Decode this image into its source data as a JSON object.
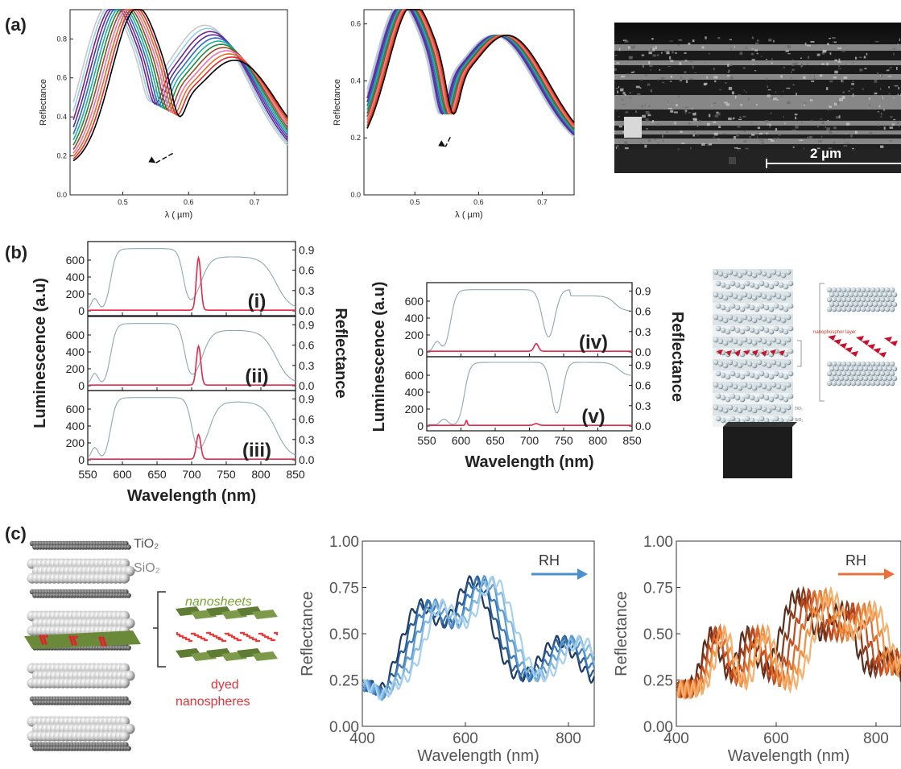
{
  "panel_labels": {
    "a": "(a)",
    "b": "(b)",
    "c": "(c)"
  },
  "panel_a": {
    "sem_scale_label": "2 µm",
    "colors": [
      "#000000",
      "#e8282a",
      "#e07020",
      "#f070b0",
      "#9a4b2a",
      "#1e8a3c",
      "#20b0a0",
      "#2f68c8",
      "#5530a0",
      "#7a1f8a",
      "#8fd0e8",
      "#c8c8c8"
    ],
    "chart_left": {
      "ylabel": "Reflectance",
      "xlabel": "λ ( µm)",
      "x_ticks": [
        "0.5",
        "0.6",
        "0.7"
      ],
      "y_ticks": [
        "0.0",
        "0.2",
        "0.4",
        "0.6",
        "0.8"
      ]
    },
    "chart_right": {
      "ylabel": "Reflectance",
      "xlabel": "λ ( µm)",
      "x_ticks": [
        "0.5",
        "0.6",
        "0.7"
      ],
      "y_ticks": [
        "0.0",
        "0.2",
        "0.4",
        "0.6"
      ]
    }
  },
  "panel_b": {
    "ylabel_left": "Luminescence (a.u)",
    "ylabel_right": "Reflectance",
    "xlabel": "Wavelength (nm)",
    "lum_ticks": [
      "0",
      "200",
      "400",
      "600"
    ],
    "refl_ticks": [
      "0.0",
      "0.3",
      "0.6",
      "0.9"
    ],
    "x_ticks": [
      "550",
      "600",
      "650",
      "700",
      "750",
      "800",
      "850"
    ],
    "subpanels": [
      {
        "label": "(i)",
        "peak": 620
      },
      {
        "label": "(ii)",
        "peak": 460
      },
      {
        "label": "(iii)",
        "peak": 290
      },
      {
        "label": "(iv)",
        "peak": 90
      },
      {
        "label": "(v)",
        "peak": 20
      }
    ],
    "schematic_labels": {
      "nanophosphor": "nanophosphor layer",
      "tio2": "TiO₂",
      "sio2": "SiO₂"
    }
  },
  "panel_c": {
    "schematic": {
      "tio2": "TiO₂",
      "sio2": "SiO₂",
      "nanosheets": "nanosheets",
      "dyed1": "dyed",
      "dyed2": "nanospheres"
    },
    "chart_blue": {
      "xlabel": "Wavelength (nm)",
      "ylabel": "Reflectance",
      "arrow_label": "RH",
      "x_ticks": [
        "400",
        "600",
        "800"
      ],
      "y_ticks": [
        "0.00",
        "0.25",
        "0.50",
        "0.75",
        "1.00"
      ],
      "colors": [
        "#1a3a66",
        "#2a5a90",
        "#3a78b8",
        "#5a9ad0",
        "#80b8e0",
        "#a8d0ee"
      ]
    },
    "chart_orange": {
      "xlabel": "Wavelength (nm)",
      "ylabel": "Reflectance",
      "arrow_label": "RH",
      "x_ticks": [
        "400",
        "600",
        "800"
      ],
      "y_ticks": [
        "0.00",
        "0.25",
        "0.50",
        "0.75",
        "1.00"
      ],
      "colors": [
        "#5a2a1a",
        "#8a3a1a",
        "#c04a20",
        "#e06a2a",
        "#f09040",
        "#f4b070"
      ]
    }
  },
  "chart_data": [
    {
      "type": "line",
      "xlabel": "λ ( µm)",
      "ylabel": "Reflectance",
      "xlim": [
        0.42,
        0.75
      ],
      "ylim": [
        0,
        0.95
      ],
      "series_count": 12,
      "dip_wavelength_range": [
        0.535,
        0.585
      ],
      "peak1": 0.9,
      "peak2_range": [
        0.7,
        0.88
      ]
    },
    {
      "type": "line",
      "xlabel": "λ ( µm)",
      "ylabel": "Reflectance",
      "xlim": [
        0.42,
        0.75
      ],
      "ylim": [
        0,
        0.65
      ],
      "series_count": 12,
      "dip_wavelength_range": [
        0.535,
        0.56
      ],
      "peak1": 0.59,
      "peak2": 0.55
    },
    {
      "type": "line",
      "xlabel": "Wavelength (nm)",
      "ylabel": "Luminescence (a.u)",
      "xlim": [
        550,
        850
      ],
      "ylim": [
        0,
        800
      ],
      "y2lim": [
        0,
        1.0
      ],
      "peaks_nm": 710,
      "peak_values": [
        620,
        460,
        290,
        90,
        20
      ]
    },
    {
      "type": "line",
      "xlabel": "Wavelength (nm)",
      "ylabel": "Reflectance",
      "xlim": [
        400,
        850
      ],
      "ylim": [
        0,
        1
      ],
      "series_count": 6,
      "annotation": "RH"
    },
    {
      "type": "line",
      "xlabel": "Wavelength (nm)",
      "ylabel": "Reflectance",
      "xlim": [
        400,
        850
      ],
      "ylim": [
        0,
        1
      ],
      "series_count": 6,
      "annotation": "RH"
    }
  ]
}
